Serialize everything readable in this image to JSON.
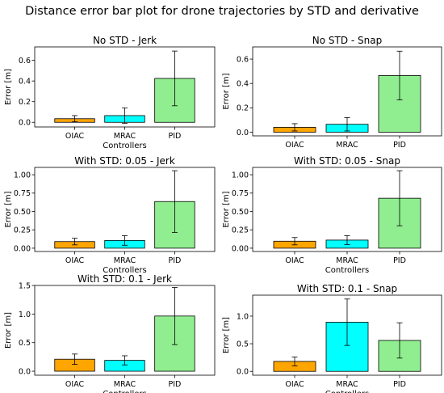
{
  "figure": {
    "title": "Distance error bar plot for drone trajectories by STD and derivative"
  },
  "colors": {
    "OIAC": "#ffa500",
    "MRAC": "#00ffff",
    "PID": "#90ee90"
  },
  "chart_data": [
    {
      "type": "bar",
      "title": "No STD - Jerk",
      "xlabel": "Controllers",
      "ylabel": "Error [m]",
      "categories": [
        "OIAC",
        "MRAC",
        "PID"
      ],
      "values": [
        0.035,
        0.065,
        0.425
      ],
      "errors": [
        0.03,
        0.075,
        0.265
      ],
      "ylim": [
        -0.045,
        0.73
      ],
      "yticks": [
        0.0,
        0.2,
        0.4,
        0.6
      ],
      "yticklabels": [
        "0.0",
        "0.2",
        "0.4",
        "0.6"
      ]
    },
    {
      "type": "bar",
      "title": "No STD - Snap",
      "xlabel": "",
      "ylabel": "Error [m]",
      "categories": [
        "OIAC",
        "MRAC",
        "PID"
      ],
      "values": [
        0.04,
        0.065,
        0.465
      ],
      "errors": [
        0.03,
        0.055,
        0.2
      ],
      "ylim": [
        -0.03,
        0.7
      ],
      "yticks": [
        0.0,
        0.2,
        0.4,
        0.6
      ],
      "yticklabels": [
        "0.0",
        "0.2",
        "0.4",
        "0.6"
      ]
    },
    {
      "type": "bar",
      "title": "With STD: 0.05 - Jerk",
      "xlabel": "Controllers",
      "ylabel": "Error [m]",
      "categories": [
        "OIAC",
        "MRAC",
        "PID"
      ],
      "values": [
        0.09,
        0.105,
        0.635
      ],
      "errors": [
        0.045,
        0.065,
        0.42
      ],
      "ylim": [
        -0.045,
        1.1
      ],
      "yticks": [
        0.0,
        0.25,
        0.5,
        0.75,
        1.0
      ],
      "yticklabels": [
        "0.00",
        "0.25",
        "0.50",
        "0.75",
        "1.00"
      ]
    },
    {
      "type": "bar",
      "title": "With STD: 0.05 - Snap",
      "xlabel": "Controllers",
      "ylabel": "Error [m]",
      "categories": [
        "OIAC",
        "MRAC",
        "PID"
      ],
      "values": [
        0.095,
        0.11,
        0.68
      ],
      "errors": [
        0.05,
        0.06,
        0.375
      ],
      "ylim": [
        -0.045,
        1.1
      ],
      "yticks": [
        0.0,
        0.25,
        0.5,
        0.75,
        1.0
      ],
      "yticklabels": [
        "0.00",
        "0.25",
        "0.50",
        "0.75",
        "1.00"
      ]
    },
    {
      "type": "bar",
      "title": "With STD: 0.1 - Jerk",
      "xlabel": "Controllers",
      "ylabel": "Error [m]",
      "categories": [
        "OIAC",
        "MRAC",
        "PID"
      ],
      "values": [
        0.21,
        0.19,
        0.965
      ],
      "errors": [
        0.09,
        0.08,
        0.5
      ],
      "ylim": [
        -0.07,
        1.5
      ],
      "yticks": [
        0.0,
        0.5,
        1.0,
        1.5
      ],
      "yticklabels": [
        "0.0",
        "0.5",
        "1.0",
        "1.5"
      ]
    },
    {
      "type": "bar",
      "title": "With STD: 0.1 - Snap",
      "xlabel": "Controllers",
      "ylabel": "Error [m]",
      "categories": [
        "OIAC",
        "MRAC",
        "PID"
      ],
      "values": [
        0.18,
        0.89,
        0.56
      ],
      "errors": [
        0.08,
        0.42,
        0.32
      ],
      "ylim": [
        -0.07,
        1.38
      ],
      "yticks": [
        0.0,
        0.5,
        1.0
      ],
      "yticklabels": [
        "0.0",
        "0.5",
        "1.0"
      ]
    }
  ]
}
